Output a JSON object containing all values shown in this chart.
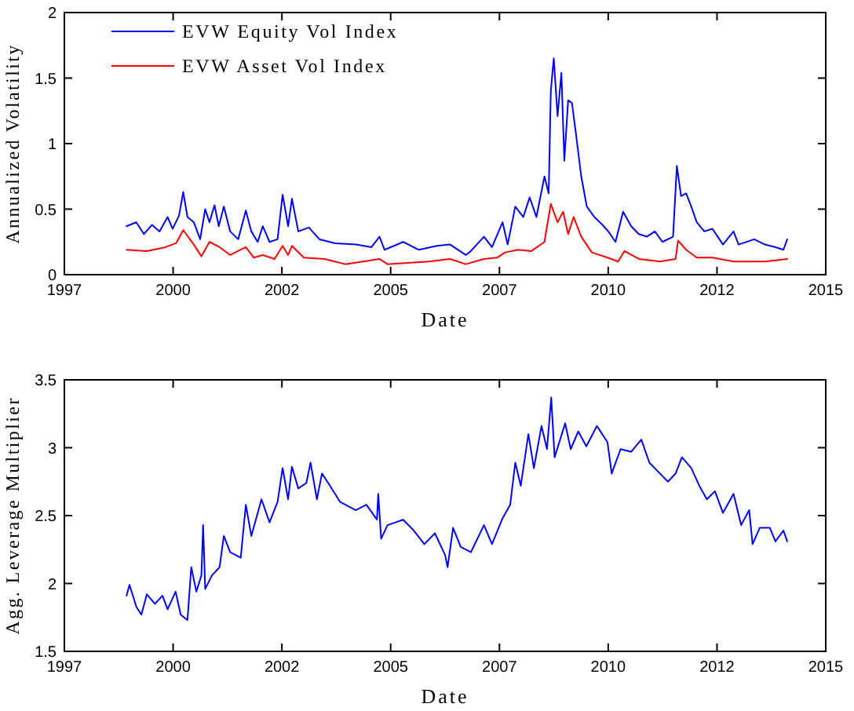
{
  "chart_data": [
    {
      "type": "line",
      "xlabel": "Date",
      "ylabel": "Annualized Volatility",
      "legend": "top left",
      "xlim": [
        1997,
        2015
      ],
      "xticks": [
        {
          "value": 1997,
          "label": "1997"
        },
        {
          "value": 1999.571,
          "label": "2000"
        },
        {
          "value": 2002.143,
          "label": "2002"
        },
        {
          "value": 2004.714,
          "label": "2005"
        },
        {
          "value": 2007.286,
          "label": "2007"
        },
        {
          "value": 2009.857,
          "label": "2010"
        },
        {
          "value": 2012.429,
          "label": "2012"
        },
        {
          "value": 2015,
          "label": "2015"
        }
      ],
      "ylim": [
        0,
        2
      ],
      "yticks": [
        0,
        0.5,
        1,
        1.5,
        2
      ],
      "series": [
        {
          "name": "EVW Equity Vol Index",
          "color": "#0000ff",
          "x": [
            1998.47,
            1998.7,
            1998.88,
            1999.07,
            1999.25,
            1999.44,
            1999.56,
            1999.71,
            1999.81,
            1999.91,
            2000.06,
            2000.21,
            2000.33,
            2000.43,
            2000.55,
            2000.65,
            2000.77,
            2000.92,
            2001.11,
            2001.29,
            2001.42,
            2001.57,
            2001.69,
            2001.85,
            2002.04,
            2002.16,
            2002.29,
            2002.38,
            2002.53,
            2002.78,
            2003.03,
            2003.4,
            2003.89,
            2004.26,
            2004.45,
            2004.57,
            2005.01,
            2005.38,
            2005.81,
            2006.12,
            2006.49,
            2006.61,
            2006.92,
            2007.11,
            2007.36,
            2007.48,
            2007.66,
            2007.85,
            2008.0,
            2008.16,
            2008.35,
            2008.45,
            2008.5,
            2008.57,
            2008.66,
            2008.75,
            2008.82,
            2008.91,
            2009.0,
            2009.1,
            2009.22,
            2009.35,
            2009.53,
            2009.72,
            2009.86,
            2010.03,
            2010.21,
            2010.4,
            2010.58,
            2010.77,
            2010.96,
            2011.14,
            2011.39,
            2011.48,
            2011.58,
            2011.7,
            2011.82,
            2011.95,
            2012.13,
            2012.32,
            2012.57,
            2012.82,
            2012.94,
            2013.31,
            2013.56,
            2013.81,
            2014.0,
            2014.09
          ],
          "values": [
            0.37,
            0.4,
            0.31,
            0.38,
            0.33,
            0.44,
            0.35,
            0.45,
            0.63,
            0.44,
            0.4,
            0.27,
            0.5,
            0.4,
            0.53,
            0.37,
            0.52,
            0.33,
            0.27,
            0.49,
            0.33,
            0.25,
            0.37,
            0.25,
            0.27,
            0.61,
            0.37,
            0.58,
            0.33,
            0.36,
            0.27,
            0.24,
            0.23,
            0.21,
            0.29,
            0.19,
            0.25,
            0.19,
            0.22,
            0.23,
            0.15,
            0.18,
            0.29,
            0.21,
            0.4,
            0.23,
            0.52,
            0.44,
            0.59,
            0.44,
            0.75,
            0.62,
            1.4,
            1.65,
            1.21,
            1.54,
            0.87,
            1.33,
            1.31,
            1.06,
            0.75,
            0.52,
            0.44,
            0.38,
            0.33,
            0.25,
            0.48,
            0.37,
            0.31,
            0.29,
            0.33,
            0.25,
            0.29,
            0.83,
            0.6,
            0.62,
            0.52,
            0.4,
            0.33,
            0.35,
            0.23,
            0.33,
            0.23,
            0.27,
            0.23,
            0.21,
            0.19,
            0.27
          ]
        },
        {
          "name": "EVW Asset Vol Index",
          "color": "#ff0000",
          "x": [
            1998.47,
            1998.95,
            1999.39,
            1999.64,
            1999.81,
            2000.06,
            2000.24,
            2000.43,
            2000.67,
            2000.92,
            2001.29,
            2001.48,
            2001.69,
            2001.97,
            2002.16,
            2002.29,
            2002.38,
            2002.66,
            2003.15,
            2003.64,
            2004.45,
            2004.64,
            2005.62,
            2006.12,
            2006.49,
            2006.92,
            2007.23,
            2007.42,
            2007.73,
            2008.04,
            2008.35,
            2008.5,
            2008.66,
            2008.79,
            2008.91,
            2009.04,
            2009.22,
            2009.47,
            2009.84,
            2010.09,
            2010.24,
            2010.58,
            2011.08,
            2011.45,
            2011.51,
            2011.7,
            2011.95,
            2012.32,
            2012.82,
            2013.56,
            2014.09
          ],
          "values": [
            0.19,
            0.18,
            0.21,
            0.24,
            0.34,
            0.23,
            0.14,
            0.25,
            0.21,
            0.15,
            0.21,
            0.13,
            0.15,
            0.12,
            0.22,
            0.15,
            0.22,
            0.13,
            0.12,
            0.08,
            0.12,
            0.08,
            0.1,
            0.12,
            0.08,
            0.12,
            0.13,
            0.17,
            0.19,
            0.18,
            0.25,
            0.54,
            0.4,
            0.48,
            0.31,
            0.44,
            0.29,
            0.17,
            0.13,
            0.1,
            0.18,
            0.12,
            0.1,
            0.12,
            0.26,
            0.19,
            0.13,
            0.13,
            0.1,
            0.1,
            0.12
          ]
        }
      ]
    },
    {
      "type": "line",
      "xlabel": "Date",
      "ylabel": "Agg. Leverage Multiplier",
      "xlim": [
        1997,
        2015
      ],
      "xticks": [
        {
          "value": 1997,
          "label": "1997"
        },
        {
          "value": 1999.571,
          "label": "2000"
        },
        {
          "value": 2002.143,
          "label": "2002"
        },
        {
          "value": 2004.714,
          "label": "2005"
        },
        {
          "value": 2007.286,
          "label": "2007"
        },
        {
          "value": 2009.857,
          "label": "2010"
        },
        {
          "value": 2012.429,
          "label": "2012"
        },
        {
          "value": 2015,
          "label": "2015"
        }
      ],
      "ylim": [
        1.5,
        3.5
      ],
      "yticks": [
        1.5,
        2,
        2.5,
        3,
        3.5
      ],
      "series": [
        {
          "color": "#0000ff",
          "x": [
            1998.47,
            1998.54,
            1998.7,
            1998.82,
            1998.95,
            1999.14,
            1999.32,
            1999.44,
            1999.63,
            1999.75,
            1999.91,
            2000.0,
            2000.12,
            2000.24,
            2000.28,
            2000.33,
            2000.49,
            2000.67,
            2000.77,
            2000.92,
            2001.17,
            2001.29,
            2001.42,
            2001.66,
            2001.85,
            2002.04,
            2002.16,
            2002.29,
            2002.38,
            2002.53,
            2002.72,
            2002.82,
            2002.97,
            2003.09,
            2003.28,
            2003.52,
            2003.89,
            2004.14,
            2004.39,
            2004.42,
            2004.49,
            2004.64,
            2005.01,
            2005.26,
            2005.51,
            2005.76,
            2006.0,
            2006.06,
            2006.19,
            2006.37,
            2006.61,
            2006.92,
            2007.11,
            2007.36,
            2007.54,
            2007.66,
            2007.79,
            2007.97,
            2008.1,
            2008.28,
            2008.41,
            2008.51,
            2008.59,
            2008.84,
            2008.97,
            2009.15,
            2009.34,
            2009.59,
            2009.84,
            2009.94,
            2010.15,
            2010.4,
            2010.64,
            2010.83,
            2011.08,
            2011.27,
            2011.45,
            2011.6,
            2011.82,
            2012.01,
            2012.19,
            2012.38,
            2012.57,
            2012.82,
            2013.0,
            2013.19,
            2013.27,
            2013.44,
            2013.68,
            2013.81,
            2014.0,
            2014.09
          ],
          "values": [
            1.91,
            1.99,
            1.83,
            1.77,
            1.92,
            1.85,
            1.91,
            1.81,
            1.94,
            1.77,
            1.73,
            2.12,
            1.94,
            2.06,
            2.43,
            1.96,
            2.06,
            2.12,
            2.35,
            2.23,
            2.19,
            2.58,
            2.35,
            2.62,
            2.45,
            2.6,
            2.85,
            2.62,
            2.86,
            2.7,
            2.74,
            2.89,
            2.62,
            2.81,
            2.72,
            2.6,
            2.54,
            2.58,
            2.47,
            2.66,
            2.33,
            2.43,
            2.47,
            2.39,
            2.29,
            2.37,
            2.21,
            2.12,
            2.41,
            2.27,
            2.23,
            2.43,
            2.29,
            2.48,
            2.58,
            2.89,
            2.72,
            3.1,
            2.85,
            3.16,
            2.99,
            3.37,
            2.93,
            3.18,
            2.99,
            3.12,
            3.01,
            3.16,
            3.04,
            2.81,
            2.99,
            2.97,
            3.06,
            2.89,
            2.81,
            2.75,
            2.81,
            2.93,
            2.85,
            2.72,
            2.62,
            2.68,
            2.52,
            2.66,
            2.43,
            2.54,
            2.29,
            2.41,
            2.41,
            2.31,
            2.39,
            2.31
          ]
        }
      ]
    }
  ]
}
